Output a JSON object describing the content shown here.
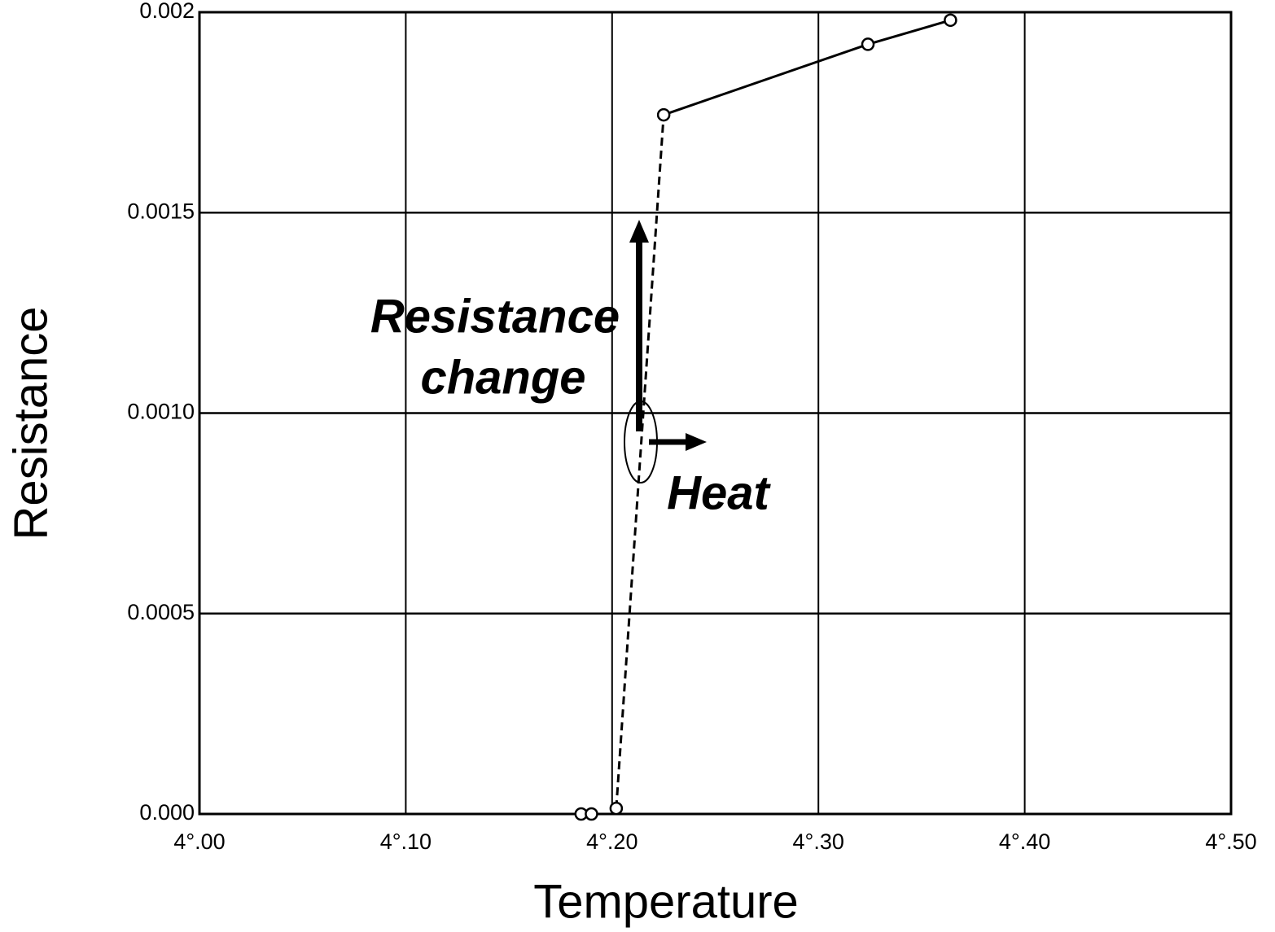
{
  "chart_data": {
    "type": "line",
    "x_label": "Temperature",
    "y_label": "Resistance",
    "xlim": [
      4.0,
      4.5
    ],
    "ylim": [
      0,
      0.002
    ],
    "xticks": [
      {
        "value": 4.0,
        "label": "4°.00"
      },
      {
        "value": 4.1,
        "label": "4°.10"
      },
      {
        "value": 4.2,
        "label": "4°.20"
      },
      {
        "value": 4.3,
        "label": "4°.30"
      },
      {
        "value": 4.4,
        "label": "4°.40"
      },
      {
        "value": 4.5,
        "label": "4°.50"
      }
    ],
    "yticks": [
      {
        "value": 0,
        "label": "0.000"
      },
      0.0005,
      {
        "value": 0.001,
        "label": "0.0010"
      },
      0.0015,
      0.002
    ],
    "grid": true,
    "series": [
      {
        "color": "#000000",
        "x": [
          4.185,
          4.19,
          4.202,
          4.225,
          4.324,
          4.364
        ],
        "values": [
          0,
          0,
          1.4e-05,
          0.001744,
          0.00192,
          0.00198
        ]
      }
    ],
    "annotations": [
      "Resistance",
      "change",
      "Heat"
    ]
  }
}
